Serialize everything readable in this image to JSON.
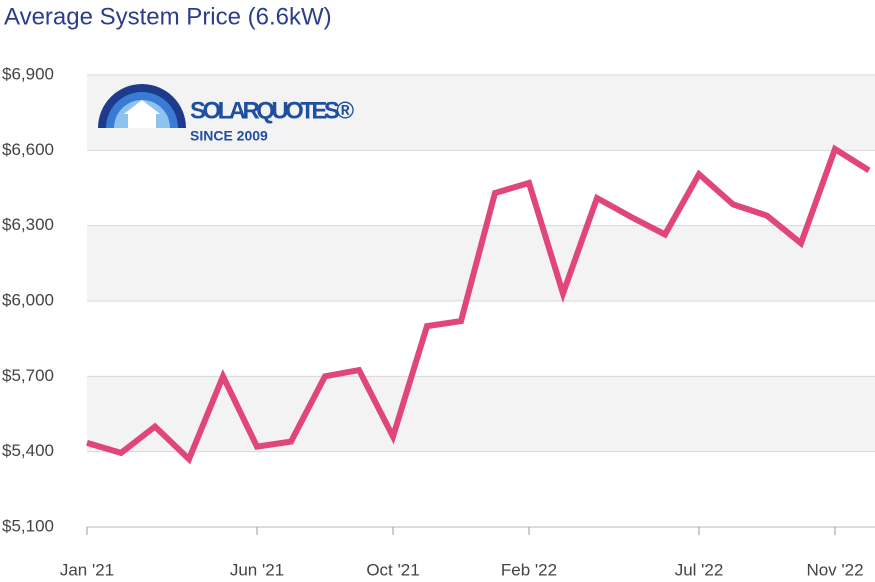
{
  "chart_data": {
    "type": "line",
    "title": "Average System Price (6.6kW)",
    "watermark": {
      "name": "SOLARQUOTES®",
      "tagline": "SINCE 2009"
    },
    "categories": [
      "Jan '21",
      null,
      null,
      null,
      null,
      "Jun '21",
      null,
      null,
      null,
      "Oct '21",
      null,
      null,
      null,
      "Feb '22",
      null,
      null,
      null,
      null,
      "Jul '22",
      null,
      null,
      null,
      "Nov '22",
      null
    ],
    "values": [
      5435,
      5395,
      5500,
      5370,
      5700,
      5420,
      5440,
      5700,
      5725,
      5460,
      5900,
      5920,
      6430,
      6470,
      6030,
      6410,
      6335,
      6265,
      6505,
      6385,
      6340,
      6230,
      6605,
      6520
    ],
    "color": "#e0457b",
    "ylim": [
      5100,
      6900
    ],
    "yticks": [
      {
        "value": 5100,
        "label": "$5,100"
      },
      {
        "value": 5400,
        "label": "$5,400"
      },
      {
        "value": 5700,
        "label": "$5,700"
      },
      {
        "value": 6000,
        "label": "$6,000"
      },
      {
        "value": 6300,
        "label": "$6,300"
      },
      {
        "value": 6600,
        "label": "$6,600"
      },
      {
        "value": 6900,
        "label": "$6,900"
      }
    ],
    "grid": true
  }
}
